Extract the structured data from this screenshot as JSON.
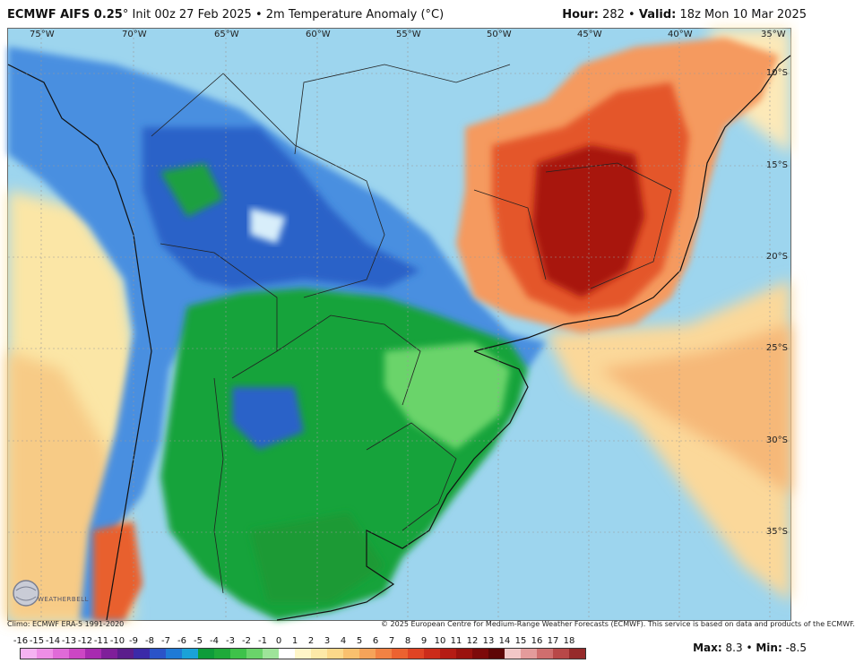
{
  "header": {
    "model": "ECMWF AIFS 0.25",
    "degree": "°",
    "init": "Init 00z 27 Feb 2025",
    "separator": "•",
    "field": "2m Temperature Anomaly (°C)",
    "hour_label": "Hour:",
    "hour_value": "282",
    "valid_label": "Valid:",
    "valid_value": "18z Mon 10 Mar 2025"
  },
  "map": {
    "lon_labels": [
      "75°W",
      "70°W",
      "65°W",
      "60°W",
      "55°W",
      "50°W",
      "45°W",
      "40°W",
      "35°W"
    ],
    "lat_labels": [
      "10°S",
      "15°S",
      "20°S",
      "25°S",
      "30°S",
      "35°S"
    ],
    "logo_text": "WEATHERBELL"
  },
  "footer": {
    "climo": "Climo: ECMWF ERA-5 1991-2020",
    "copyright": "© 2025 European Centre for Medium-Range Weather Forecasts (ECMWF). This service is based on data and products of the ECMWF."
  },
  "colorbar": {
    "labels": [
      "-16",
      "-15",
      "-14",
      "-13",
      "-12",
      "-11",
      "-10",
      "-9",
      "-8",
      "-7",
      "-6",
      "-5",
      "-4",
      "-3",
      "-2",
      "-1",
      "0",
      "1",
      "2",
      "3",
      "4",
      "5",
      "6",
      "7",
      "8",
      "9",
      "10",
      "11",
      "12",
      "13",
      "14",
      "15",
      "16",
      "17",
      "18"
    ],
    "colors": [
      "#f6b3f2",
      "#ee8ee6",
      "#e06ad8",
      "#cc46c4",
      "#a82ab0",
      "#7f1f9a",
      "#5b1d8c",
      "#3b2aa8",
      "#2b53c8",
      "#1f7ad6",
      "#1aa2d8",
      "#0e9c3a",
      "#1faa3a",
      "#3ec24a",
      "#6ad36a",
      "#9ee49a",
      "#ffffff",
      "#fff6c8",
      "#fde9a8",
      "#fcd88a",
      "#f9c06e",
      "#f6a35a",
      "#f28244",
      "#ec6230",
      "#e04424",
      "#cc2c1a",
      "#b51c14",
      "#9a120e",
      "#7d0a0a",
      "#5e0606",
      "#f2c7c7",
      "#e39b9b",
      "#cf6e6e",
      "#b84848",
      "#962a2a"
    ]
  },
  "stats": {
    "max_label": "Max:",
    "max_value": "8.3",
    "sep": "•",
    "min_label": "Min:",
    "min_value": "-8.5"
  }
}
